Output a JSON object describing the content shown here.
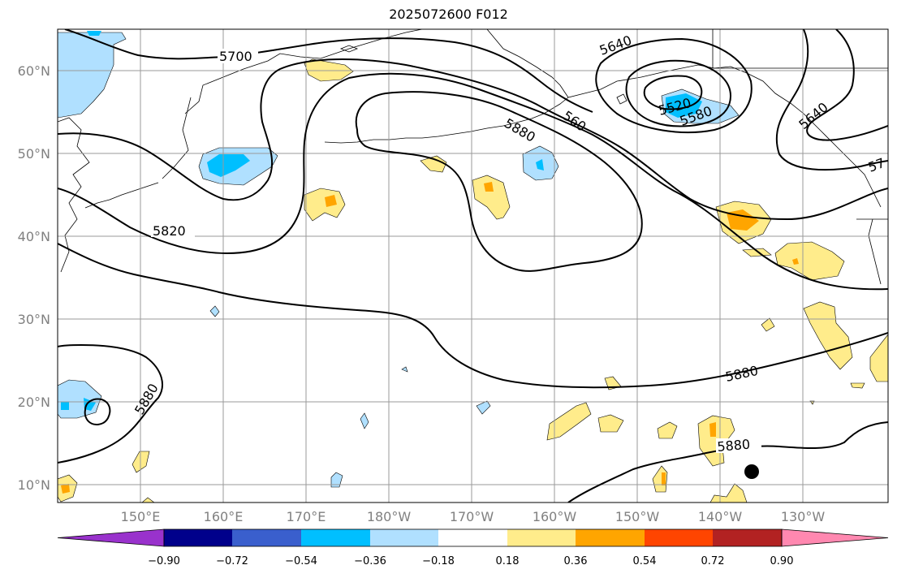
{
  "title": "2025072600 F012",
  "latitude_labels": [
    "60°N",
    "50°N",
    "40°N",
    "30°N",
    "20°N",
    "10°N"
  ],
  "longitude_labels": [
    "150°E",
    "160°E",
    "170°E",
    "180°W",
    "170°W",
    "160°W",
    "150°W",
    "140°W",
    "130°W"
  ],
  "contour_labels": [
    "5700",
    "5640",
    "5520",
    "5580",
    "5640",
    "560",
    "5880",
    "5820",
    "5880",
    "5880",
    "5880",
    "57"
  ],
  "colorbar": {
    "tick_labels": [
      "−0.90",
      "−0.72",
      "−0.54",
      "−0.36",
      "−0.18",
      "0.18",
      "0.36",
      "0.54",
      "0.72",
      "0.90"
    ],
    "colors": [
      "#9932cc",
      "#00008b",
      "#3a5fcd",
      "#00bfff",
      "#b0e0ff",
      "#ffffff",
      "#ffec8b",
      "#ffa500",
      "#ff4500",
      "#b22222",
      "#ff88b0"
    ]
  }
}
